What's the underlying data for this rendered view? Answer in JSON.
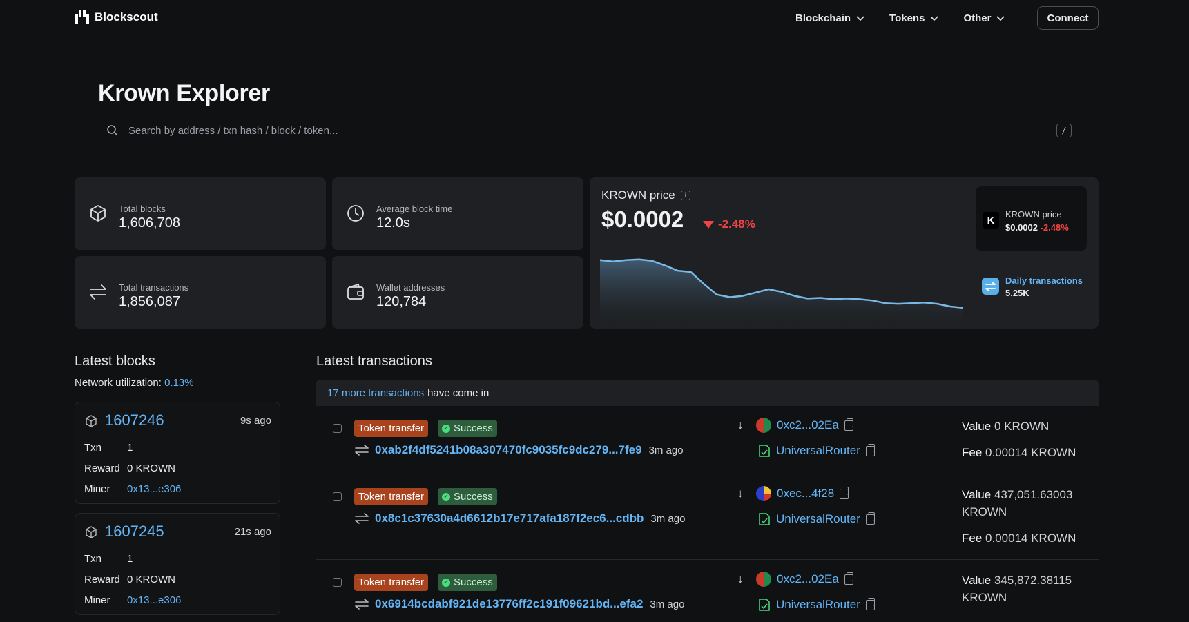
{
  "header": {
    "brand": "Blockscout",
    "nav": [
      "Blockchain",
      "Tokens",
      "Other"
    ],
    "connect_label": "Connect"
  },
  "hero": {
    "title": "Krown Explorer",
    "search_placeholder": "Search by address / txn hash / block / token...",
    "search_shortcut": "/"
  },
  "stats": {
    "total_blocks": {
      "label": "Total blocks",
      "value": "1,606,708"
    },
    "avg_block_time": {
      "label": "Average block time",
      "value": "12.0s"
    },
    "total_transactions": {
      "label": "Total transactions",
      "value": "1,856,087"
    },
    "wallet_addresses": {
      "label": "Wallet addresses",
      "value": "120,784"
    }
  },
  "price": {
    "label": "KROWN price",
    "value": "$0.0002",
    "change": "-2.48%",
    "mini_label": "KROWN price",
    "mini_value": "$0.0002",
    "mini_change": "-2.48%",
    "daily_label": "Daily transactions",
    "daily_value": "5.25K",
    "series": [
      0.94,
      0.92,
      0.94,
      0.95,
      0.93,
      0.86,
      0.78,
      0.76,
      0.58,
      0.42,
      0.38,
      0.4,
      0.45,
      0.5,
      0.46,
      0.4,
      0.36,
      0.37,
      0.35,
      0.36,
      0.35,
      0.33,
      0.29,
      0.28,
      0.29,
      0.3,
      0.28,
      0.24,
      0.22
    ]
  },
  "latest_blocks": {
    "title": "Latest blocks",
    "util_label": "Network utilization:",
    "util_value": "0.13%",
    "blocks": [
      {
        "number": "1607246",
        "ago": "9s ago",
        "txn_label": "Txn",
        "txn": "1",
        "reward_label": "Reward",
        "reward": "0 KROWN",
        "miner_label": "Miner",
        "miner": "0x13...e306"
      },
      {
        "number": "1607245",
        "ago": "21s ago",
        "txn_label": "Txn",
        "txn": "1",
        "reward_label": "Reward",
        "reward": "0 KROWN",
        "miner_label": "Miner",
        "miner": "0x13...e306"
      }
    ]
  },
  "latest_txs": {
    "title": "Latest transactions",
    "banner_link": "17 more transactions",
    "banner_text": "have come in",
    "txs": [
      {
        "type": "Token transfer",
        "status": "Success",
        "hash": "0xab2f4df5241b08a307470fc9035fc9dc279...7fe9",
        "ago": "3m ago",
        "from": "0xc2...02Ea",
        "to": "UniversalRouter",
        "value_label": "Value",
        "value": "0 KROWN",
        "fee_label": "Fee",
        "fee": "0.00014 KROWN"
      },
      {
        "type": "Token transfer",
        "status": "Success",
        "hash": "0x8c1c37630a4d6612b17e717afa187f2ec6...cdbb",
        "ago": "3m ago",
        "from": "0xec...4f28",
        "to": "UniversalRouter",
        "value_label": "Value",
        "value": "437,051.63003 KROWN",
        "fee_label": "Fee",
        "fee": "0.00014 KROWN"
      },
      {
        "type": "Token transfer",
        "status": "Success",
        "hash": "0x6914bcdabf921de13776ff2c191f09621bd...efa2",
        "ago": "3m ago",
        "from": "0xc2...02Ea",
        "to": "UniversalRouter",
        "value_label": "Value",
        "value": "345,872.38115 KROWN",
        "fee_label": "Fee",
        "fee": ""
      }
    ]
  },
  "colors": {
    "accent": "#64b5f6",
    "negative": "#ef4444",
    "card": "#1e2023",
    "bg": "#101112"
  }
}
